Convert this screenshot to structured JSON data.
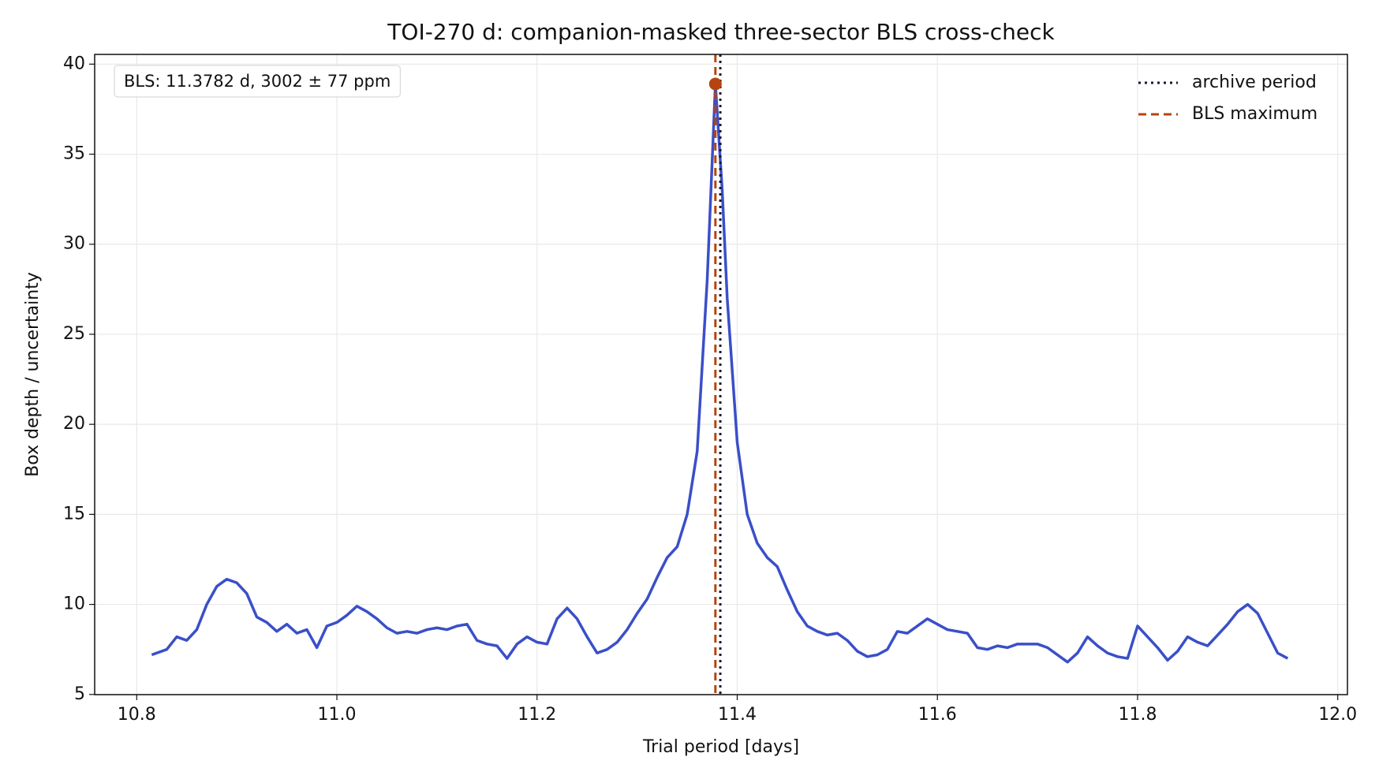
{
  "chart_data": {
    "type": "line",
    "title": "TOI-270 d: companion-masked three-sector BLS cross-check",
    "xlabel": "Trial period [days]",
    "ylabel": "Box depth / uncertainty",
    "annotation": "BLS: 11.3782 d, 3002 ± 77 ppm",
    "x": [
      10.815,
      10.83,
      10.84,
      10.85,
      10.86,
      10.87,
      10.88,
      10.89,
      10.9,
      10.91,
      10.92,
      10.93,
      10.94,
      10.95,
      10.96,
      10.97,
      10.98,
      10.99,
      11.0,
      11.01,
      11.02,
      11.03,
      11.04,
      11.05,
      11.06,
      11.07,
      11.08,
      11.09,
      11.1,
      11.11,
      11.12,
      11.13,
      11.14,
      11.15,
      11.16,
      11.17,
      11.18,
      11.19,
      11.2,
      11.21,
      11.22,
      11.23,
      11.24,
      11.25,
      11.26,
      11.27,
      11.28,
      11.29,
      11.3,
      11.31,
      11.32,
      11.33,
      11.34,
      11.35,
      11.36,
      11.37,
      11.3782,
      11.385,
      11.39,
      11.4,
      11.41,
      11.42,
      11.43,
      11.44,
      11.45,
      11.46,
      11.47,
      11.48,
      11.49,
      11.5,
      11.51,
      11.52,
      11.53,
      11.54,
      11.55,
      11.56,
      11.57,
      11.58,
      11.59,
      11.6,
      11.61,
      11.62,
      11.63,
      11.64,
      11.65,
      11.66,
      11.67,
      11.68,
      11.69,
      11.7,
      11.71,
      11.72,
      11.73,
      11.74,
      11.75,
      11.76,
      11.77,
      11.78,
      11.79,
      11.8,
      11.81,
      11.82,
      11.83,
      11.84,
      11.85,
      11.86,
      11.87,
      11.88,
      11.89,
      11.9,
      11.91,
      11.92,
      11.93,
      11.94,
      11.95
    ],
    "series": [
      {
        "color": "#3a4fc8",
        "values": [
          7.2,
          7.5,
          8.2,
          8.0,
          8.6,
          10.0,
          11.0,
          11.4,
          11.2,
          10.6,
          9.3,
          9.0,
          8.5,
          8.9,
          8.4,
          8.6,
          7.6,
          8.8,
          9.0,
          9.4,
          9.9,
          9.6,
          9.2,
          8.7,
          8.4,
          8.5,
          8.4,
          8.6,
          8.7,
          8.6,
          8.8,
          8.9,
          8.0,
          7.8,
          7.7,
          7.0,
          7.8,
          8.2,
          7.9,
          7.8,
          9.2,
          9.8,
          9.2,
          8.2,
          7.3,
          7.5,
          7.9,
          8.6,
          9.5,
          10.3,
          11.5,
          12.6,
          13.2,
          15.0,
          18.5,
          28.0,
          38.9,
          33.0,
          27.0,
          19.0,
          15.0,
          13.4,
          12.6,
          12.1,
          10.8,
          9.6,
          8.8,
          8.5,
          8.3,
          8.4,
          8.0,
          7.4,
          7.1,
          7.2,
          7.5,
          8.5,
          8.4,
          8.8,
          9.2,
          8.9,
          8.6,
          8.5,
          8.4,
          7.6,
          7.5,
          7.7,
          7.6,
          7.8,
          7.8,
          7.8,
          7.6,
          7.2,
          6.8,
          7.3,
          8.2,
          7.7,
          7.3,
          7.1,
          7.0,
          8.8,
          8.2,
          7.6,
          6.9,
          7.4,
          8.2,
          7.9,
          7.7,
          8.3,
          8.9,
          9.6,
          10.0,
          9.5,
          8.4,
          7.3,
          7.0
        ]
      }
    ],
    "peak": {
      "x": 11.3782,
      "y": 38.9,
      "color": "#b5440f"
    },
    "vlines": [
      {
        "name": "archive period",
        "x": 11.3831,
        "color": "#1a1a2e",
        "style": "dotted"
      },
      {
        "name": "BLS maximum",
        "x": 11.3782,
        "color": "#b5440f",
        "style": "dashed"
      }
    ],
    "xlim": [
      10.758,
      12.0097
    ],
    "ylim": [
      4.99,
      40.54
    ],
    "xticks": [
      10.8,
      {
        "value": 11.0,
        "label": "11.0"
      },
      11.2,
      11.4,
      11.6,
      11.8,
      {
        "value": 12.0,
        "label": "12.0"
      }
    ],
    "yticks": [
      5,
      10,
      15,
      20,
      25,
      30,
      35,
      40
    ],
    "grid": true,
    "legend": "upper right"
  }
}
